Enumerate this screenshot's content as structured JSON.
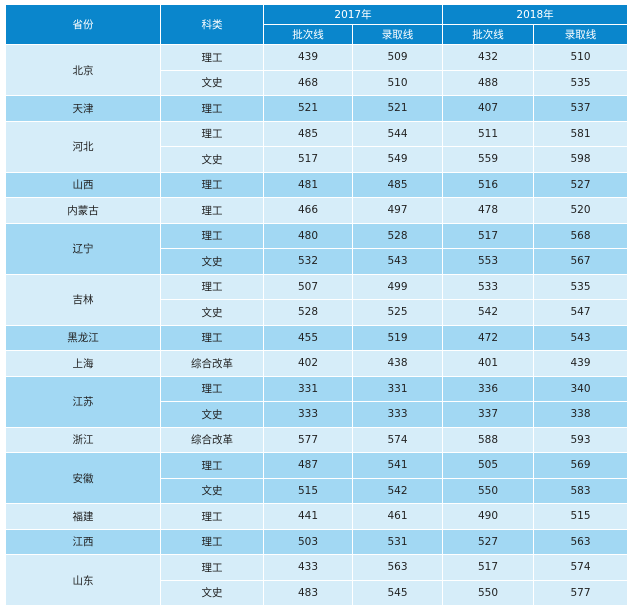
{
  "headers": {
    "province": "省份",
    "category": "科类",
    "year1": "2017年",
    "year2": "2018年",
    "batch": "批次线",
    "admit": "录取线"
  },
  "groups": [
    {
      "province": "北京",
      "rows": [
        [
          "理工",
          "439",
          "509",
          "432",
          "510"
        ],
        [
          "文史",
          "468",
          "510",
          "488",
          "535"
        ]
      ]
    },
    {
      "province": "天津",
      "rows": [
        [
          "理工",
          "521",
          "521",
          "407",
          "537"
        ]
      ]
    },
    {
      "province": "河北",
      "rows": [
        [
          "理工",
          "485",
          "544",
          "511",
          "581"
        ],
        [
          "文史",
          "517",
          "549",
          "559",
          "598"
        ]
      ]
    },
    {
      "province": "山西",
      "rows": [
        [
          "理工",
          "481",
          "485",
          "516",
          "527"
        ]
      ]
    },
    {
      "province": "内蒙古",
      "rows": [
        [
          "理工",
          "466",
          "497",
          "478",
          "520"
        ]
      ]
    },
    {
      "province": "辽宁",
      "rows": [
        [
          "理工",
          "480",
          "528",
          "517",
          "568"
        ],
        [
          "文史",
          "532",
          "543",
          "553",
          "567"
        ]
      ]
    },
    {
      "province": "吉林",
      "rows": [
        [
          "理工",
          "507",
          "499",
          "533",
          "535"
        ],
        [
          "文史",
          "528",
          "525",
          "542",
          "547"
        ]
      ]
    },
    {
      "province": "黑龙江",
      "rows": [
        [
          "理工",
          "455",
          "519",
          "472",
          "543"
        ]
      ]
    },
    {
      "province": "上海",
      "rows": [
        [
          "综合改革",
          "402",
          "438",
          "401",
          "439"
        ]
      ]
    },
    {
      "province": "江苏",
      "rows": [
        [
          "理工",
          "331",
          "331",
          "336",
          "340"
        ],
        [
          "文史",
          "333",
          "333",
          "337",
          "338"
        ]
      ]
    },
    {
      "province": "浙江",
      "rows": [
        [
          "综合改革",
          "577",
          "574",
          "588",
          "593"
        ]
      ]
    },
    {
      "province": "安徽",
      "rows": [
        [
          "理工",
          "487",
          "541",
          "505",
          "569"
        ],
        [
          "文史",
          "515",
          "542",
          "550",
          "583"
        ]
      ]
    },
    {
      "province": "福建",
      "rows": [
        [
          "理工",
          "441",
          "461",
          "490",
          "515"
        ]
      ]
    },
    {
      "province": "江西",
      "rows": [
        [
          "理工",
          "503",
          "531",
          "527",
          "563"
        ]
      ]
    },
    {
      "province": "山东",
      "rows": [
        [
          "理工",
          "433",
          "563",
          "517",
          "574"
        ],
        [
          "文史",
          "483",
          "545",
          "550",
          "577"
        ]
      ]
    }
  ],
  "colors": {
    "header": "#0a86cc",
    "light": "#d6edf9",
    "dark": "#a2d8f3"
  }
}
